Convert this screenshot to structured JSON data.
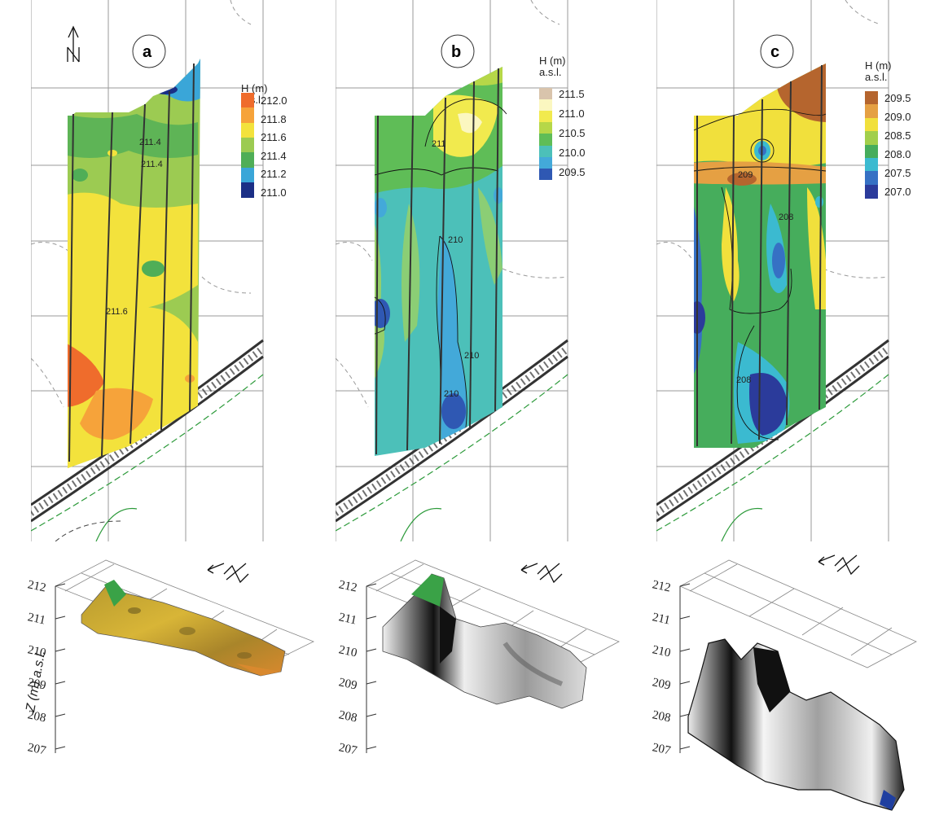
{
  "panels": [
    {
      "letter": "a",
      "legend_title_1": "H (m)",
      "legend_title_2": "a.s.l.",
      "legend_ticks": [
        "212.0",
        "211.8",
        "211.6",
        "211.4",
        "211.2",
        "211.0"
      ],
      "legend_colors": [
        "#ef6c2c",
        "#f6a33a",
        "#f3e23c",
        "#9ccb52",
        "#4fae57",
        "#3aa6d8",
        "#1b2f86"
      ],
      "contour_labels": [
        "211.4",
        "211.4",
        "211.6"
      ]
    },
    {
      "letter": "b",
      "legend_title_1": "H (m)",
      "legend_title_2": "a.s.l.",
      "legend_ticks": [
        "211.5",
        "211.0",
        "210.5",
        "210.0",
        "209.5"
      ],
      "legend_colors": [
        "#d9c4ac",
        "#fbf7c0",
        "#f1ea4e",
        "#b6d748",
        "#5fbd57",
        "#4cc0b9",
        "#43a9d9",
        "#2f58b3"
      ],
      "contour_labels": [
        "211",
        "210",
        "210",
        "210"
      ]
    },
    {
      "letter": "c",
      "legend_title_1": "H (m)",
      "legend_title_2": "a.s.l.",
      "legend_ticks": [
        "209.5",
        "209.0",
        "208.5",
        "208.0",
        "207.5",
        "207.0"
      ],
      "legend_colors": [
        "#b5652e",
        "#e5a043",
        "#f1e03c",
        "#a2cf4b",
        "#46ad5c",
        "#3bbad0",
        "#3671c4",
        "#2b3b9b"
      ],
      "contour_labels": [
        "209",
        "208",
        "208"
      ]
    }
  ],
  "surface_3d": {
    "z_axis_title": "Z (m) a.s.l.",
    "z_ticks": [
      "212",
      "211",
      "210",
      "209",
      "208",
      "207"
    ]
  }
}
